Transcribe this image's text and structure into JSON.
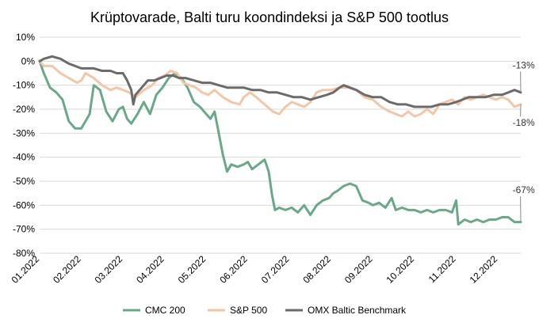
{
  "chart_data": {
    "type": "line",
    "title": "Krüptovarade, Balti turu koondindeksi ja S&P 500 tootlus",
    "xlabel": "",
    "ylabel": "",
    "ylim": [
      -80,
      10
    ],
    "y_ticks": [
      "10%",
      "0%",
      "-10%",
      "-20%",
      "-30%",
      "-40%",
      "-50%",
      "-60%",
      "-70%",
      "-80%"
    ],
    "x_ticks": [
      "01.2022",
      "02.2022",
      "03.2022",
      "04.2022",
      "05.2022",
      "06.2022",
      "07.2022",
      "08.2022",
      "09.2022",
      "10.2022",
      "11.2022",
      "12.2022"
    ],
    "grid": true,
    "legend_position": "bottom",
    "series": [
      {
        "name": "CMC 200",
        "color": "#6aa88a",
        "values": [
          [
            0.0,
            0
          ],
          [
            0.1,
            -5
          ],
          [
            0.25,
            -11
          ],
          [
            0.4,
            -13
          ],
          [
            0.55,
            -16
          ],
          [
            0.7,
            -25
          ],
          [
            0.85,
            -28
          ],
          [
            1.0,
            -28
          ],
          [
            1.1,
            -25
          ],
          [
            1.2,
            -22
          ],
          [
            1.3,
            -10
          ],
          [
            1.45,
            -12
          ],
          [
            1.6,
            -21
          ],
          [
            1.75,
            -25
          ],
          [
            1.9,
            -20
          ],
          [
            2.0,
            -19
          ],
          [
            2.1,
            -24
          ],
          [
            2.2,
            -26
          ],
          [
            2.35,
            -22
          ],
          [
            2.5,
            -17
          ],
          [
            2.65,
            -22
          ],
          [
            2.8,
            -14
          ],
          [
            2.95,
            -11
          ],
          [
            3.1,
            -7
          ],
          [
            3.25,
            -5
          ],
          [
            3.4,
            -7
          ],
          [
            3.55,
            -11
          ],
          [
            3.7,
            -17
          ],
          [
            3.85,
            -19
          ],
          [
            4.0,
            -22
          ],
          [
            4.1,
            -24
          ],
          [
            4.2,
            -21
          ],
          [
            4.3,
            -30
          ],
          [
            4.4,
            -39
          ],
          [
            4.5,
            -46
          ],
          [
            4.6,
            -43
          ],
          [
            4.75,
            -44
          ],
          [
            4.9,
            -43
          ],
          [
            5.0,
            -42
          ],
          [
            5.1,
            -45
          ],
          [
            5.25,
            -43
          ],
          [
            5.4,
            -41
          ],
          [
            5.5,
            -46
          ],
          [
            5.58,
            -56
          ],
          [
            5.65,
            -62
          ],
          [
            5.75,
            -61
          ],
          [
            5.9,
            -62
          ],
          [
            6.05,
            -61
          ],
          [
            6.2,
            -63
          ],
          [
            6.35,
            -60
          ],
          [
            6.5,
            -64
          ],
          [
            6.65,
            -60
          ],
          [
            6.8,
            -58
          ],
          [
            6.95,
            -57
          ],
          [
            7.05,
            -55
          ],
          [
            7.15,
            -54
          ],
          [
            7.3,
            -52
          ],
          [
            7.45,
            -51
          ],
          [
            7.6,
            -52
          ],
          [
            7.75,
            -58
          ],
          [
            7.9,
            -59
          ],
          [
            8.0,
            -60
          ],
          [
            8.15,
            -59
          ],
          [
            8.3,
            -61
          ],
          [
            8.45,
            -57
          ],
          [
            8.55,
            -62
          ],
          [
            8.7,
            -61
          ],
          [
            8.85,
            -62
          ],
          [
            9.0,
            -62
          ],
          [
            9.15,
            -63
          ],
          [
            9.3,
            -62
          ],
          [
            9.45,
            -63
          ],
          [
            9.6,
            -62
          ],
          [
            9.75,
            -62
          ],
          [
            9.9,
            -63
          ],
          [
            10.0,
            -58
          ],
          [
            10.05,
            -68
          ],
          [
            10.2,
            -66
          ],
          [
            10.35,
            -67
          ],
          [
            10.5,
            -66
          ],
          [
            10.65,
            -67
          ],
          [
            10.8,
            -66
          ],
          [
            10.95,
            -66
          ],
          [
            11.1,
            -65
          ],
          [
            11.25,
            -65
          ],
          [
            11.4,
            -67
          ],
          [
            11.55,
            -67
          ]
        ]
      },
      {
        "name": "S&P 500",
        "color": "#f3c6a7",
        "values": [
          [
            0.0,
            0
          ],
          [
            0.1,
            -2
          ],
          [
            0.3,
            -2
          ],
          [
            0.5,
            -5
          ],
          [
            0.7,
            -7
          ],
          [
            0.9,
            -9
          ],
          [
            1.0,
            -8
          ],
          [
            1.1,
            -5
          ],
          [
            1.3,
            -7
          ],
          [
            1.5,
            -10
          ],
          [
            1.7,
            -12
          ],
          [
            1.85,
            -11
          ],
          [
            2.0,
            -12
          ],
          [
            2.15,
            -13
          ],
          [
            2.3,
            -15
          ],
          [
            2.5,
            -12
          ],
          [
            2.7,
            -10
          ],
          [
            2.85,
            -7
          ],
          [
            3.0,
            -6
          ],
          [
            3.15,
            -4
          ],
          [
            3.3,
            -5
          ],
          [
            3.45,
            -9
          ],
          [
            3.6,
            -10
          ],
          [
            3.75,
            -11
          ],
          [
            3.9,
            -13
          ],
          [
            4.05,
            -14
          ],
          [
            4.2,
            -12
          ],
          [
            4.4,
            -15
          ],
          [
            4.6,
            -17
          ],
          [
            4.8,
            -18
          ],
          [
            4.9,
            -15
          ],
          [
            5.05,
            -13
          ],
          [
            5.2,
            -15
          ],
          [
            5.4,
            -18
          ],
          [
            5.6,
            -21
          ],
          [
            5.75,
            -22
          ],
          [
            5.9,
            -19
          ],
          [
            6.05,
            -17
          ],
          [
            6.2,
            -18
          ],
          [
            6.35,
            -19
          ],
          [
            6.5,
            -17
          ],
          [
            6.65,
            -13
          ],
          [
            6.8,
            -12
          ],
          [
            7.0,
            -12
          ],
          [
            7.2,
            -11
          ],
          [
            7.4,
            -11
          ],
          [
            7.6,
            -12
          ],
          [
            7.8,
            -15
          ],
          [
            8.0,
            -16
          ],
          [
            8.2,
            -19
          ],
          [
            8.4,
            -21
          ],
          [
            8.55,
            -22
          ],
          [
            8.7,
            -23
          ],
          [
            8.85,
            -21
          ],
          [
            9.0,
            -23
          ],
          [
            9.15,
            -22
          ],
          [
            9.3,
            -20
          ],
          [
            9.45,
            -22
          ],
          [
            9.6,
            -18
          ],
          [
            9.75,
            -17
          ],
          [
            9.9,
            -16
          ],
          [
            10.05,
            -18
          ],
          [
            10.2,
            -15
          ],
          [
            10.35,
            -16
          ],
          [
            10.5,
            -15
          ],
          [
            10.65,
            -14
          ],
          [
            10.8,
            -15
          ],
          [
            10.95,
            -16
          ],
          [
            11.1,
            -15
          ],
          [
            11.25,
            -16
          ],
          [
            11.4,
            -19
          ],
          [
            11.55,
            -18
          ]
        ]
      },
      {
        "name": "OMX Baltic Benchmark",
        "color": "#6b6b6b",
        "values": [
          [
            0.0,
            0
          ],
          [
            0.1,
            1
          ],
          [
            0.3,
            2
          ],
          [
            0.5,
            1
          ],
          [
            0.7,
            -1
          ],
          [
            0.85,
            -2
          ],
          [
            1.0,
            -3
          ],
          [
            1.1,
            -3
          ],
          [
            1.3,
            -3
          ],
          [
            1.5,
            -4
          ],
          [
            1.7,
            -4
          ],
          [
            1.85,
            -5
          ],
          [
            2.0,
            -5
          ],
          [
            2.1,
            -8
          ],
          [
            2.2,
            -12
          ],
          [
            2.25,
            -18
          ],
          [
            2.3,
            -14
          ],
          [
            2.45,
            -11
          ],
          [
            2.6,
            -8
          ],
          [
            2.75,
            -8
          ],
          [
            2.9,
            -7
          ],
          [
            3.05,
            -6
          ],
          [
            3.2,
            -6
          ],
          [
            3.35,
            -7
          ],
          [
            3.5,
            -7
          ],
          [
            3.7,
            -8
          ],
          [
            3.9,
            -9
          ],
          [
            4.1,
            -9
          ],
          [
            4.3,
            -10
          ],
          [
            4.5,
            -11
          ],
          [
            4.7,
            -11
          ],
          [
            4.9,
            -11
          ],
          [
            5.1,
            -12
          ],
          [
            5.3,
            -12
          ],
          [
            5.5,
            -13
          ],
          [
            5.7,
            -13
          ],
          [
            5.9,
            -14
          ],
          [
            6.1,
            -15
          ],
          [
            6.3,
            -15
          ],
          [
            6.5,
            -16
          ],
          [
            6.7,
            -15
          ],
          [
            6.9,
            -14
          ],
          [
            7.05,
            -13
          ],
          [
            7.2,
            -11
          ],
          [
            7.3,
            -10
          ],
          [
            7.45,
            -11
          ],
          [
            7.6,
            -12
          ],
          [
            7.8,
            -14
          ],
          [
            8.0,
            -15
          ],
          [
            8.2,
            -15
          ],
          [
            8.4,
            -17
          ],
          [
            8.6,
            -18
          ],
          [
            8.8,
            -18
          ],
          [
            9.0,
            -19
          ],
          [
            9.2,
            -19
          ],
          [
            9.4,
            -19
          ],
          [
            9.6,
            -18
          ],
          [
            9.8,
            -18
          ],
          [
            10.0,
            -17
          ],
          [
            10.15,
            -16
          ],
          [
            10.3,
            -15
          ],
          [
            10.5,
            -15
          ],
          [
            10.7,
            -15
          ],
          [
            10.9,
            -14
          ],
          [
            11.1,
            -14
          ],
          [
            11.25,
            -13
          ],
          [
            11.4,
            -12
          ],
          [
            11.55,
            -13
          ]
        ]
      }
    ],
    "annotations": [
      {
        "text": "-13%",
        "series": "OMX Baltic Benchmark",
        "x": 11.55,
        "y": -13,
        "label_x": 11.2,
        "label_y": -3
      },
      {
        "text": "-18%",
        "series": "S&P 500",
        "x": 11.55,
        "y": -18,
        "label_x": 11.2,
        "label_y": -27
      },
      {
        "text": "-67%",
        "series": "CMC 200",
        "x": 11.55,
        "y": -67,
        "label_x": 11.2,
        "label_y": -55
      }
    ]
  }
}
